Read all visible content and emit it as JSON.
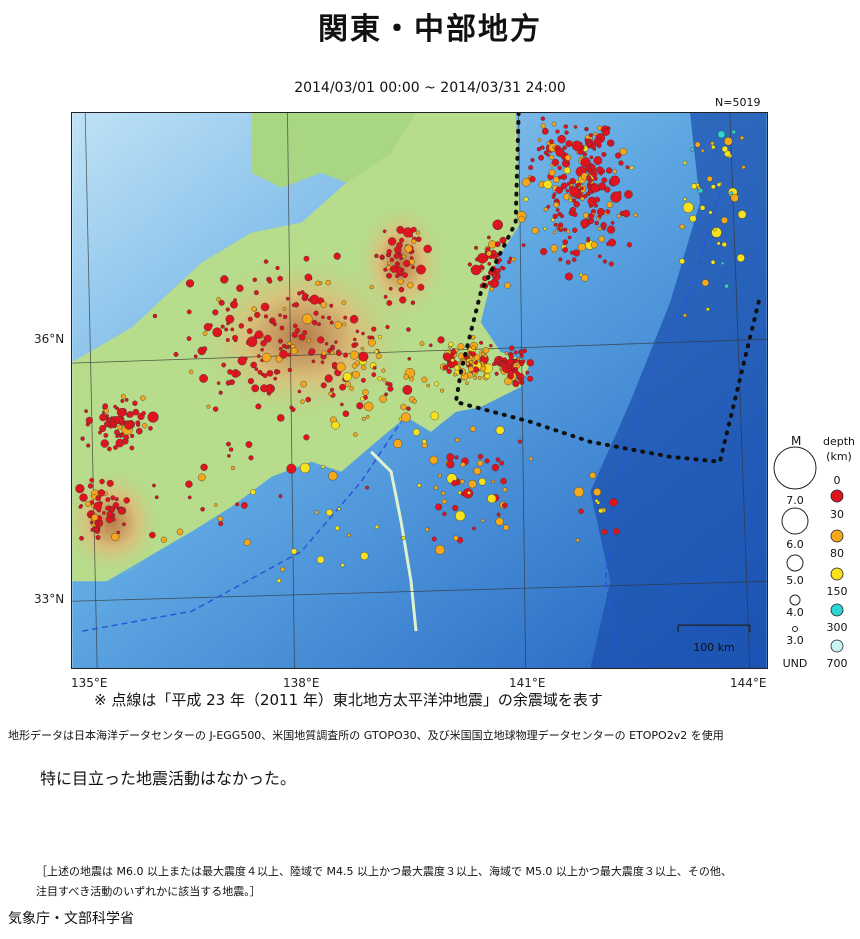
{
  "title": "関東・中部地方",
  "period": "2014/03/01 00:00 ~ 2014/03/31 24:00",
  "count_label": "N=5019",
  "map": {
    "lat_labels": [
      "36°N",
      "33°N"
    ],
    "lon_labels": [
      "135°E",
      "138°E",
      "141°E",
      "144°E"
    ],
    "scale_label": "100 km"
  },
  "legend": {
    "magnitude_title": "M",
    "magnitudes": [
      "7.0",
      "6.0",
      "5.0",
      "4.0",
      "3.0",
      "UND"
    ],
    "depth_title": "depth",
    "depth_unit": "(km)",
    "depths": [
      "0",
      "30",
      "80",
      "150",
      "300",
      "700"
    ],
    "depth_colors": [
      "#e0141e",
      "#f4a81a",
      "#f6e21c",
      "#2ed3d3",
      "#c8f4f4"
    ]
  },
  "note": "※ 点線は「平成 23 年（2011 年）東北地方太平洋沖地震」の余震域を表す",
  "source": "地形データは日本海洋データセンターの J-EGG500、米国地質調査所の GTOPO30、及び米国国立地球物理データセンターの ETOPO2v2 を使用",
  "activity": "特に目立った地震活動はなかった。",
  "criteria_line1": "［上述の地震は M6.0 以上または最大震度４以上、陸域で M4.5 以上かつ最大震度３以上、海域で M5.0 以上かつ最大震度３以上、その他、",
  "criteria_line2": "注目すべき活動のいずれかに該当する地震。］",
  "agency": "気象庁・文部科学省"
}
